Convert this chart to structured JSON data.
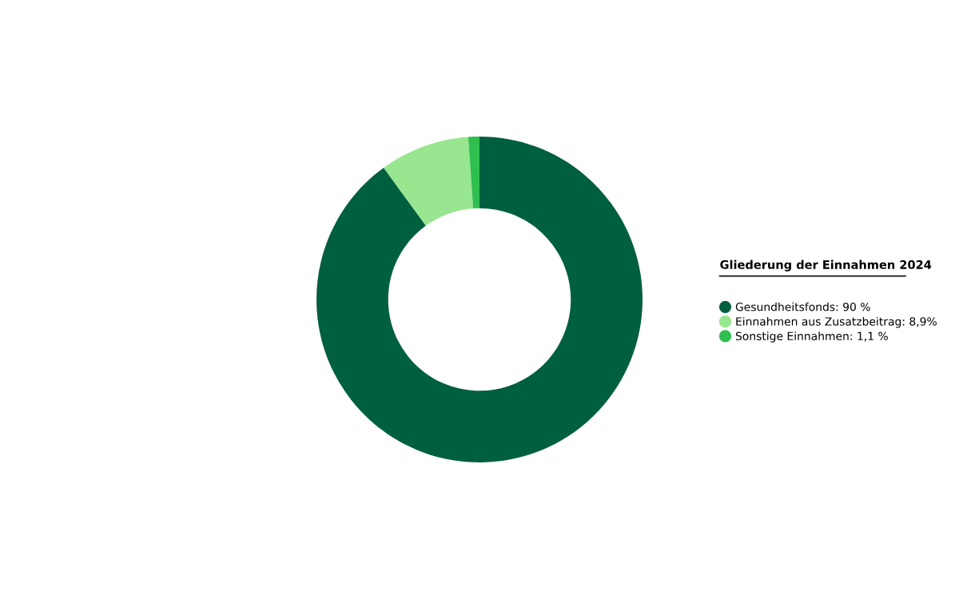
{
  "chart_data": {
    "type": "donut",
    "legend_title": "Gliederung der Einnahmen 2024",
    "categories": [
      "Gesundheitsfonds: 90 %",
      "Einnahmen aus Zusatzbeitrag: 8,9%",
      "Sonstige Einnahmen: 1,1 %"
    ],
    "values": [
      90,
      8.9,
      1.1
    ],
    "colors": [
      "#005f3f",
      "#98e690",
      "#2fbf4f"
    ],
    "legend": "right"
  }
}
